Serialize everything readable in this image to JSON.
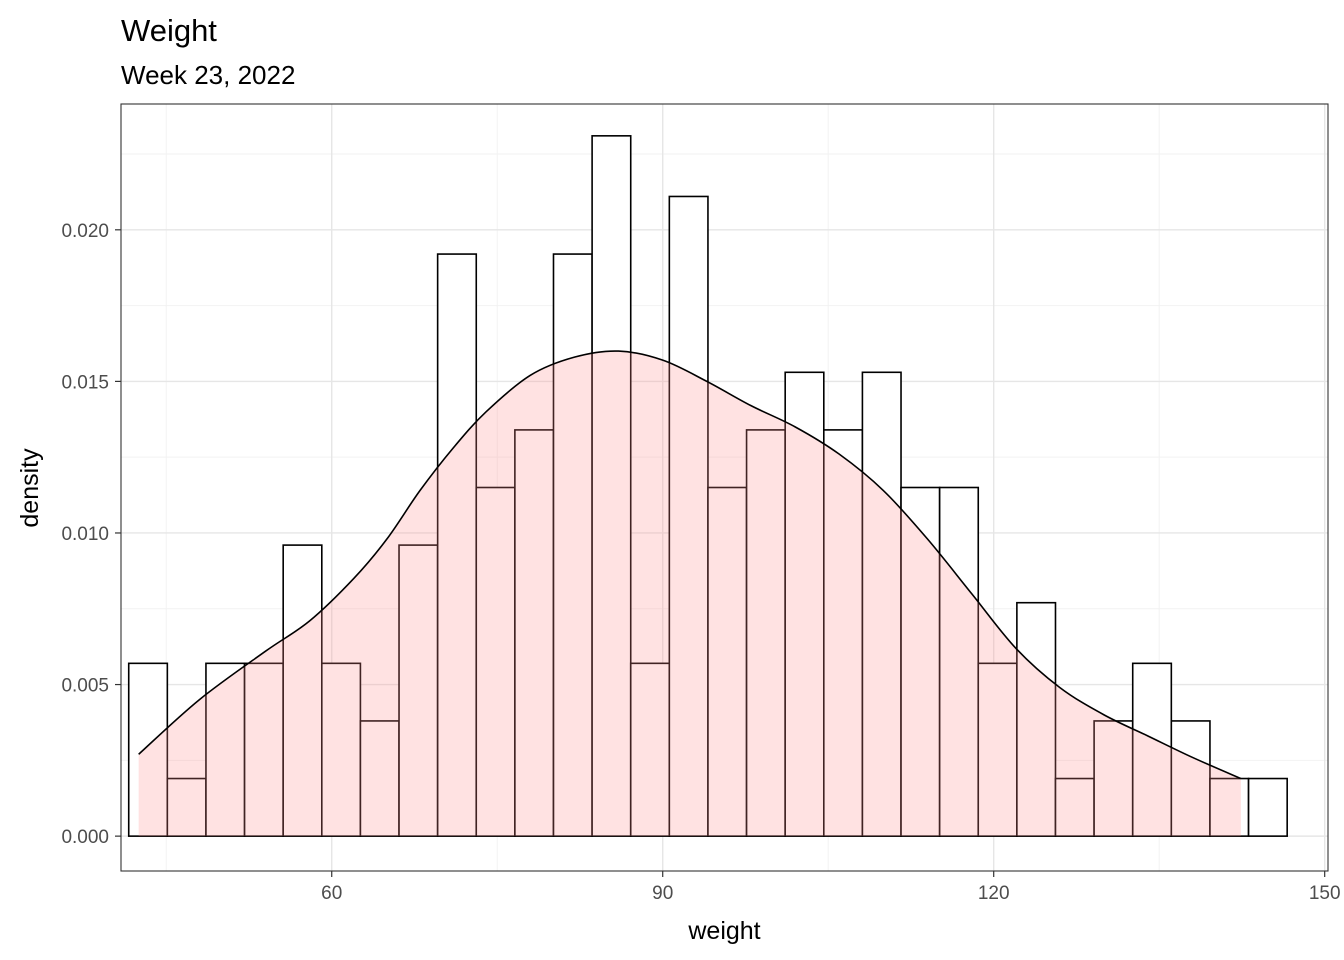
{
  "chart_data": {
    "type": "bar",
    "title": "Weight",
    "subtitle": "Week 23, 2022",
    "xlabel": "weight",
    "ylabel": "density",
    "xlim": [
      40.9,
      150.3
    ],
    "ylim": [
      -0.00115,
      0.02415
    ],
    "x_ticks": [
      60,
      90,
      120,
      150
    ],
    "y_ticks": [
      0.0,
      0.005,
      0.01,
      0.015,
      0.02
    ],
    "y_tick_labels": [
      "0.000",
      "0.005",
      "0.010",
      "0.015",
      "0.020"
    ],
    "x_minor_ticks": [
      45,
      75,
      105,
      135
    ],
    "y_minor_ticks": [
      0.0025,
      0.0075,
      0.0125,
      0.0175,
      0.0225
    ],
    "grid": true,
    "histogram": {
      "bin_start": 41.6,
      "bin_width": 3.5,
      "densities": [
        0.0057,
        0.0019,
        0.0057,
        0.0057,
        0.0096,
        0.0057,
        0.0038,
        0.0096,
        0.0192,
        0.0115,
        0.0134,
        0.0192,
        0.0231,
        0.0057,
        0.0211,
        0.0115,
        0.0134,
        0.0153,
        0.0134,
        0.0153,
        0.0115,
        0.0115,
        0.0057,
        0.0077,
        0.0019,
        0.0038,
        0.0057,
        0.0038,
        0.0019,
        0.0019
      ],
      "fill": "#ffffff",
      "stroke": "#000000"
    },
    "density_curve": {
      "x": [
        42.5,
        48,
        54,
        58,
        62,
        65,
        68,
        71,
        74,
        78,
        82,
        86,
        90,
        94,
        98,
        102,
        106,
        110,
        114,
        118,
        122,
        126,
        130,
        134,
        138,
        142.4
      ],
      "y": [
        0.0027,
        0.0045,
        0.0061,
        0.0071,
        0.0085,
        0.0098,
        0.0114,
        0.0128,
        0.014,
        0.0152,
        0.0158,
        0.016,
        0.0157,
        0.015,
        0.0142,
        0.0135,
        0.0126,
        0.0114,
        0.0098,
        0.008,
        0.0062,
        0.0049,
        0.004,
        0.0033,
        0.0026,
        0.0019
      ],
      "fill": "#ff8c8c",
      "fill_opacity": 0.25,
      "stroke": "#000000"
    }
  }
}
